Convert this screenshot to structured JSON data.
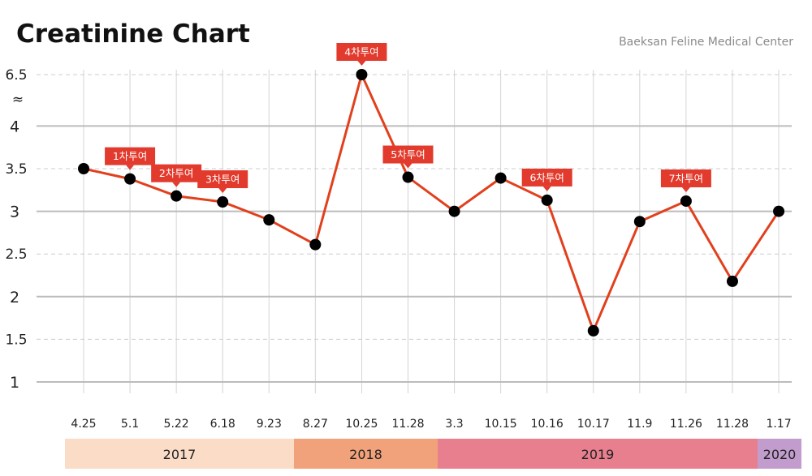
{
  "chart_data": {
    "type": "line",
    "title": "Creatinine Chart",
    "subtitle": "Baeksan Feline Medical Center",
    "xlabel": "",
    "ylabel": "",
    "categories": [
      "4.25",
      "5.1",
      "5.22",
      "6.18",
      "9.23",
      "8.27",
      "10.25",
      "11.28",
      "3.3",
      "10.15",
      "10.16",
      "10.17",
      "11.9",
      "11.26",
      "11.28",
      "1.17"
    ],
    "series": [
      {
        "values": [
          3.5,
          3.38,
          3.18,
          3.11,
          2.9,
          2.61,
          6.5,
          3.4,
          3.0,
          3.39,
          3.13,
          1.6,
          2.88,
          3.12,
          2.18,
          3.0
        ]
      }
    ],
    "ylim": [
      1,
      4
    ],
    "y_ticks_major": [
      1,
      2,
      3,
      4
    ],
    "y_ticks_minor": [
      1.5,
      2.5,
      3.5
    ],
    "y_break": {
      "value": 6.5,
      "label": "6.5",
      "symbol": "≈"
    },
    "annotations": [
      {
        "index": 1,
        "label": "1차투여"
      },
      {
        "index": 2,
        "label": "2차투여"
      },
      {
        "index": 3,
        "label": "3차투여"
      },
      {
        "index": 6,
        "label": "4차투여"
      },
      {
        "index": 7,
        "label": "5차투여"
      },
      {
        "index": 10,
        "label": "6차투여"
      },
      {
        "index": 13,
        "label": "7차투여"
      }
    ],
    "year_bands": [
      {
        "label": "2017",
        "color": "#fbdcc6"
      },
      {
        "label": "2018",
        "color": "#f2a27a"
      },
      {
        "label": "2019",
        "color": "#e87f8e"
      },
      {
        "label": "2020",
        "color": "#c29ccd"
      }
    ],
    "line_color": "#e2401d",
    "marker_color": "#000000",
    "annotation_color": "#e23a2c",
    "grid": true
  }
}
